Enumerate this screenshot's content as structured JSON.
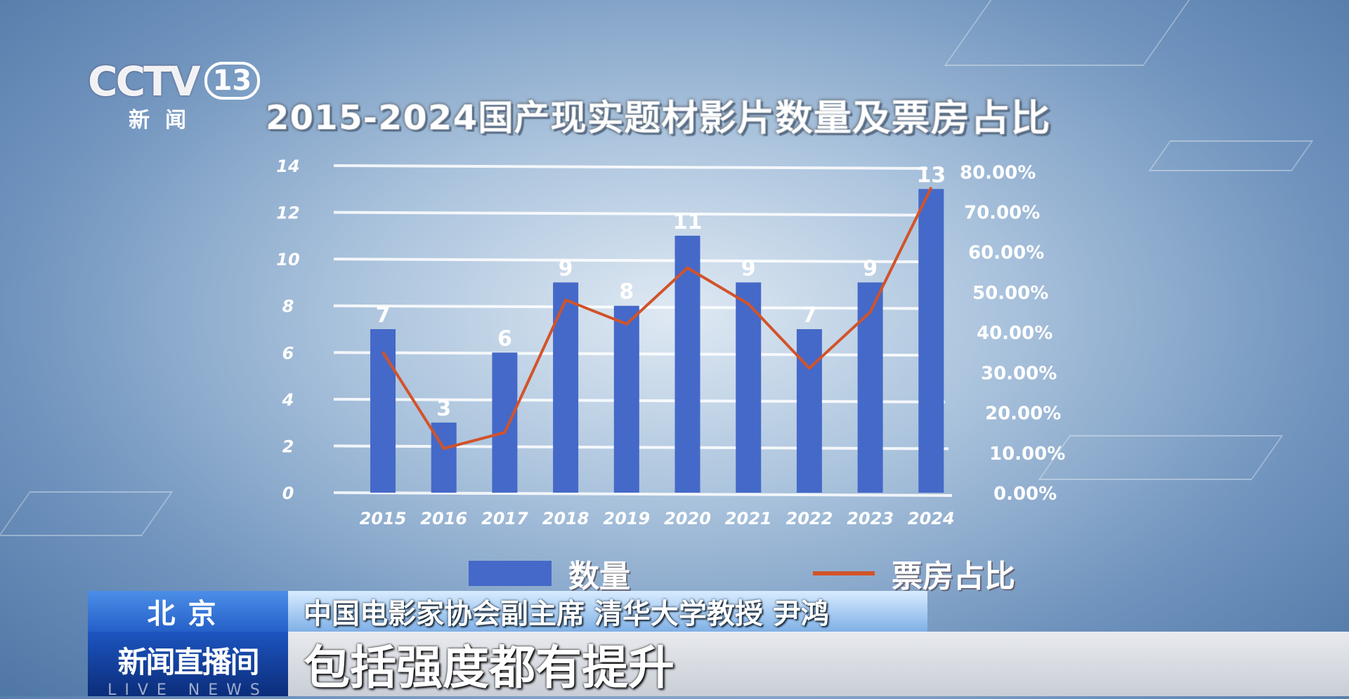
{
  "logo": {
    "brand": "CCTV",
    "channel": "13",
    "subtitle": "新闻"
  },
  "chart_data": {
    "type": "bar+line",
    "title": "2015-2024国产现实题材影片数量及票房占比",
    "categories": [
      "2015",
      "2016",
      "2017",
      "2018",
      "2019",
      "2020",
      "2021",
      "2022",
      "2023",
      "2024"
    ],
    "series": [
      {
        "name": "数量",
        "type": "bar",
        "axis": "left",
        "color": "#4569c8",
        "values": [
          7,
          3,
          6,
          9,
          8,
          11,
          9,
          7,
          9,
          13
        ],
        "data_labels": [
          "7",
          "3",
          "6",
          "9",
          "8",
          "11",
          "9",
          "7",
          "9",
          "13"
        ]
      },
      {
        "name": "票房占比",
        "type": "line",
        "axis": "right",
        "color": "#d2532a",
        "values": [
          35,
          11,
          15,
          48,
          42,
          56,
          47,
          31,
          45,
          76
        ]
      }
    ],
    "left_axis": {
      "ylim": [
        0,
        14
      ],
      "ticks": [
        "0",
        "2",
        "4",
        "6",
        "8",
        "10",
        "12",
        "14"
      ]
    },
    "right_axis": {
      "ylim": [
        0,
        80
      ],
      "ticks": [
        "0.00%",
        "10.00%",
        "20.00%",
        "30.00%",
        "40.00%",
        "50.00%",
        "60.00%",
        "70.00%",
        "80.00%"
      ]
    },
    "grid": true,
    "legend": "bottom"
  },
  "lower_third": {
    "location": "北京",
    "speaker": "中国电影家协会副主席 清华大学教授 尹鸿",
    "program": "新闻直播间",
    "program_en": "LIVE NEWS",
    "caption": "包括强度都有提升"
  }
}
